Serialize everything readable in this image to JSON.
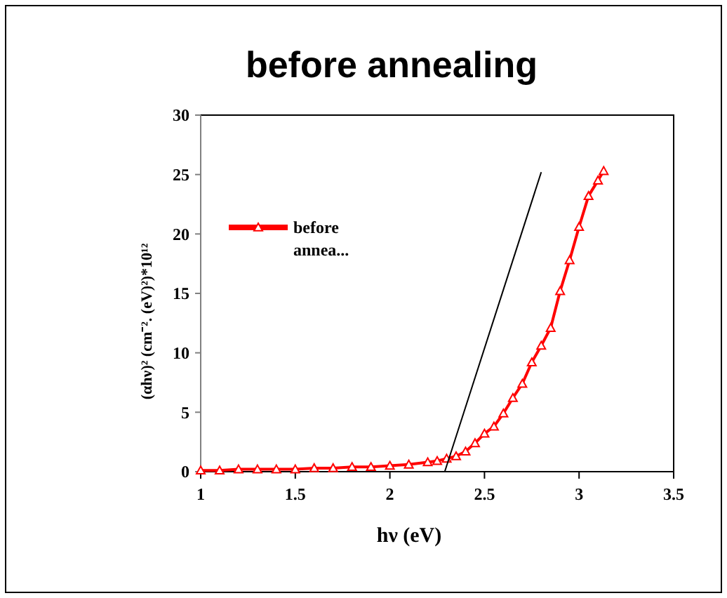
{
  "chart_data": {
    "type": "line",
    "title": "before annealing",
    "xlabel": "hν (eV)",
    "ylabel": "(αhν)²  (cm⁻². (eV)²)*10¹²",
    "xlim": [
      1,
      3.5
    ],
    "xticks": [
      1,
      1.5,
      2,
      2.5,
      3,
      3.5
    ],
    "ylim": [
      0,
      30
    ],
    "yticks": [
      0,
      5,
      10,
      15,
      20,
      25,
      30
    ],
    "grid": false,
    "legend": "top left",
    "series": [
      {
        "name": "before annea...",
        "color": "#ff0000",
        "marker": "triangle",
        "x": [
          1,
          1.1,
          1.2,
          1.3,
          1.4,
          1.5,
          1.6,
          1.7,
          1.8,
          1.9,
          2,
          2.1,
          2.2,
          2.25,
          2.3,
          2.35,
          2.4,
          2.45,
          2.5,
          2.55,
          2.6,
          2.65,
          2.7,
          2.75,
          2.8,
          2.85,
          2.9,
          2.95,
          3,
          3.05,
          3.1,
          3.13
        ],
        "values": [
          0.1,
          0.1,
          0.2,
          0.2,
          0.2,
          0.2,
          0.3,
          0.3,
          0.4,
          0.4,
          0.5,
          0.6,
          0.8,
          0.9,
          1.1,
          1.3,
          1.7,
          2.4,
          3.2,
          3.8,
          4.9,
          6.2,
          7.4,
          9.2,
          10.6,
          12.1,
          15.2,
          17.8,
          20.6,
          23.2,
          24.5,
          25.3
        ]
      },
      {
        "type": "line",
        "color": "#000000",
        "marker": "none",
        "x": [
          2.29,
          2.8
        ],
        "values": [
          0,
          25.2
        ]
      }
    ]
  }
}
